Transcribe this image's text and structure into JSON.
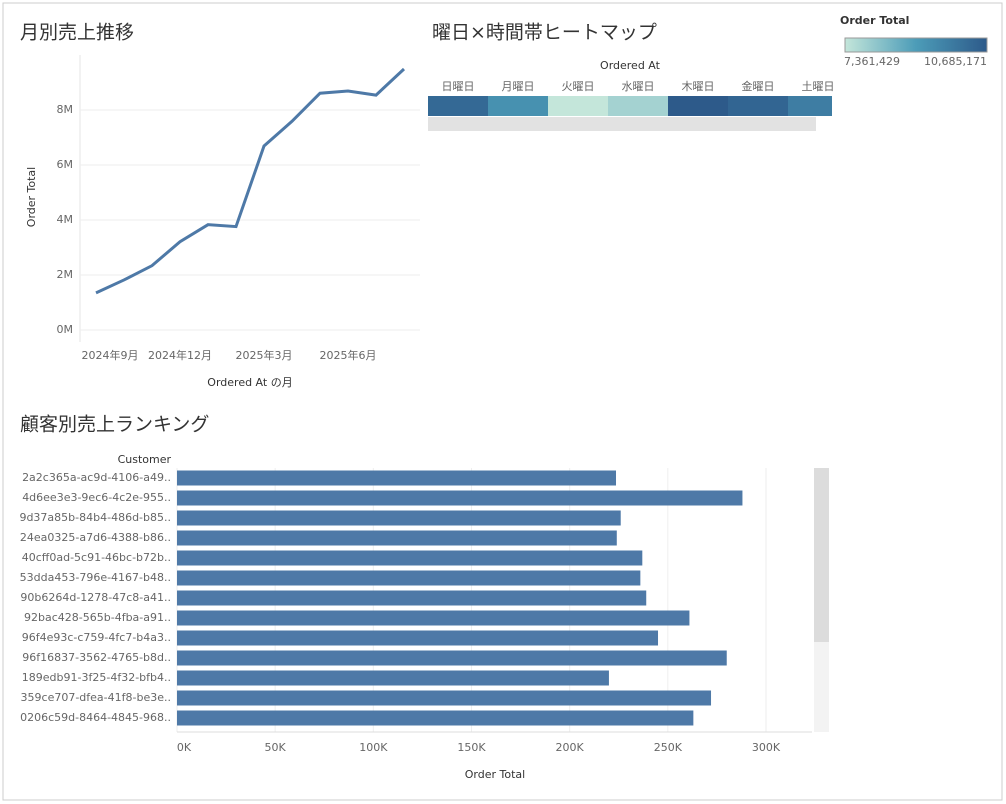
{
  "chart_data": [
    {
      "type": "line",
      "title": "月別売上推移",
      "xlabel": "Ordered At の月",
      "ylabel": "Order Total",
      "categories": [
        "2024年9月",
        null,
        null,
        "2024年12月",
        null,
        null,
        "2025年3月",
        null,
        null,
        "2025年6月",
        null,
        null
      ],
      "values": [
        1350000,
        1820000,
        2340000,
        3210000,
        3830000,
        3760000,
        6690000,
        7590000,
        8610000,
        8690000,
        8540000,
        9490000
      ],
      "color": "#4e79a7",
      "ylim": [
        0,
        10000000
      ],
      "yticks": [
        {
          "value": 0,
          "label": "0M"
        },
        {
          "value": 2000000,
          "label": "2M"
        },
        {
          "value": 4000000,
          "label": "4M"
        },
        {
          "value": 6000000,
          "label": "6M"
        },
        {
          "value": 8000000,
          "label": "8M"
        }
      ],
      "grid": true
    },
    {
      "type": "heatmap",
      "title": "曜日×時間帯ヒートマップ",
      "xlabel": "Ordered At",
      "categories": [
        "日曜日",
        "月曜日",
        "火曜日",
        "水曜日",
        "木曜日",
        "金曜日",
        "土曜日"
      ],
      "values": [
        10300000,
        9300000,
        7361429,
        7800000,
        10685171,
        10400000,
        9800000
      ],
      "colors": [
        "#c4e6da",
        "#4c9cb8",
        "#2d5a8a"
      ],
      "colorbar_title": "Order Total",
      "colorbar_ticks": [
        {
          "value": 7361429,
          "label": "7,361,429"
        },
        {
          "value": 10685171,
          "label": "10,685,171"
        }
      ]
    },
    {
      "type": "hbar",
      "title": "顧客別売上ランキング",
      "ylabel": "Customer",
      "xlabel": "Order Total",
      "categories": [
        "2a2c365a-ac9d-4106-a49..",
        "4d6ee3e3-9ec6-4c2e-955..",
        "9d37a85b-84b4-486d-b85..",
        "24ea0325-a7d6-4388-b86..",
        "40cff0ad-5c91-46bc-b72b..",
        "53dda453-796e-4167-b48..",
        "90b6264d-1278-47c8-a41..",
        "92bac428-565b-4fba-a91..",
        "96f4e93c-c759-4fc7-b4a3..",
        "96f16837-3562-4765-b8d..",
        "189edb91-3f25-4f32-bfb4..",
        "359ce707-dfea-41f8-be3e..",
        "0206c59d-8464-4845-968.."
      ],
      "values": [
        223600,
        288000,
        226000,
        224000,
        237000,
        236000,
        239000,
        261000,
        245000,
        280000,
        220000,
        272000,
        263000
      ],
      "color": "#4e79a7",
      "xlim": [
        0,
        323000
      ],
      "xticks": [
        {
          "value": 0,
          "label": "0K"
        },
        {
          "value": 50000,
          "label": "50K"
        },
        {
          "value": 100000,
          "label": "100K"
        },
        {
          "value": 150000,
          "label": "150K"
        },
        {
          "value": 200000,
          "label": "200K"
        },
        {
          "value": 250000,
          "label": "250K"
        },
        {
          "value": 300000,
          "label": "300K"
        }
      ],
      "grid": true
    }
  ]
}
